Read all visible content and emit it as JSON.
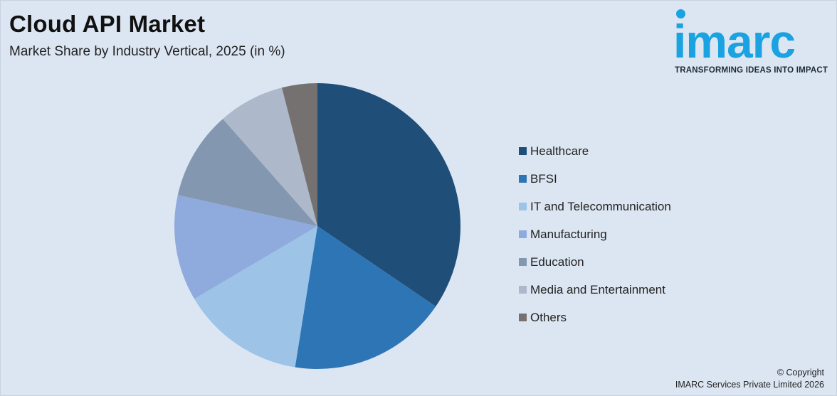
{
  "title": "Cloud API Market",
  "subtitle": "Market Share by Industry Vertical, 2025 (in %)",
  "logo": {
    "word": "imarc",
    "tagline": "TRANSFORMING IDEAS INTO IMPACT"
  },
  "copyright": {
    "line1": "© Copyright",
    "line2": "IMARC Services Private Limited 2026"
  },
  "chart_data": {
    "type": "pie",
    "title": "Cloud API Market",
    "categories": [
      "Healthcare",
      "BFSI",
      "IT and Telecommunication",
      "Manufacturing",
      "Education",
      "Media and Entertainment",
      "Others"
    ],
    "values": [
      34.5,
      18.0,
      14.0,
      12.0,
      10.0,
      7.5,
      4.0
    ],
    "colors": [
      "#1f4e79",
      "#2e75b6",
      "#9dc3e6",
      "#8faadc",
      "#8497b0",
      "#adb9ca",
      "#767171"
    ],
    "legend": "right"
  }
}
